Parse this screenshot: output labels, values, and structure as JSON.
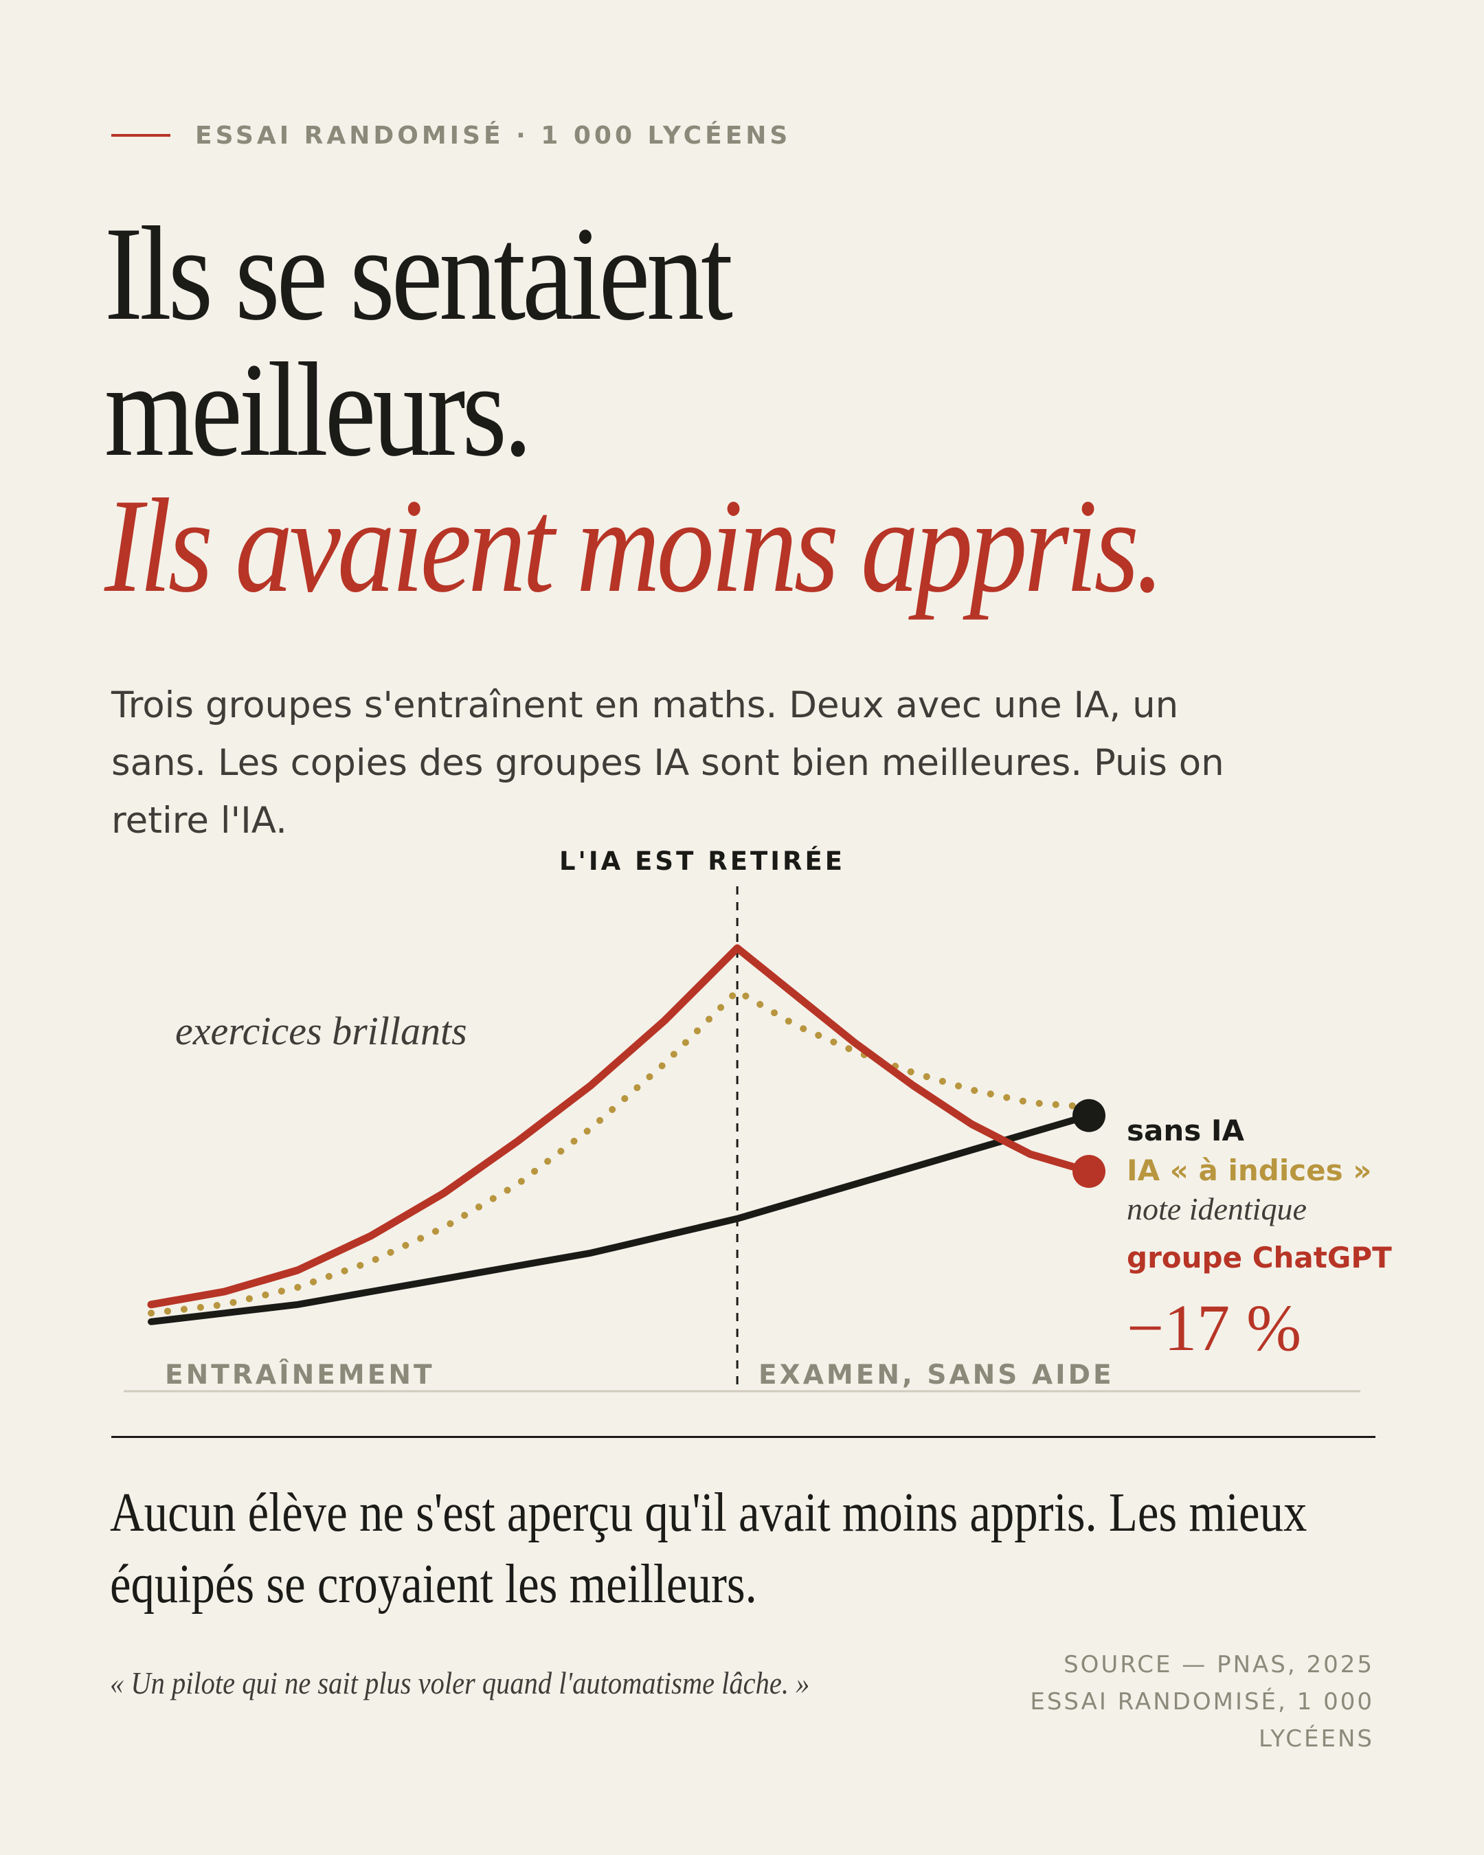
{
  "eyebrow": "ESSAI RANDOMISÉ · 1 000 LYCÉENS",
  "headline": {
    "line1": "Ils se sentaient",
    "line2": "meilleurs.",
    "line3": "Ils avaient moins appris."
  },
  "lede": "Trois groupes s'entraînent en maths. Deux avec une IA, un sans. Les copies des groupes IA sont bien meilleures. Puis on retire l'IA.",
  "colors": {
    "accent": "#b73526",
    "gold": "#b8963f",
    "ink": "#1a1a17",
    "muted": "#8b8a7a",
    "background": "#f4f1e9"
  },
  "chart_data": {
    "type": "line",
    "title": "",
    "xlabel": "",
    "ylabel": "",
    "x": [
      0,
      0.125,
      0.25,
      0.375,
      0.5,
      0.625,
      0.75,
      0.875,
      1.0,
      1.1,
      1.2,
      1.3,
      1.4,
      1.5,
      1.6
    ],
    "xlim": [
      0,
      1.6
    ],
    "ylim": [
      0,
      100
    ],
    "split_x": 1.0,
    "split_label": "L'IA EST RETIRÉE",
    "phase_labels": [
      "ENTRAÎNEMENT",
      "EXAMEN, SANS AIDE"
    ],
    "annotation": "exercices brillants",
    "series": [
      {
        "name": "groupe ChatGPT",
        "style": "solid",
        "color": "#b73526",
        "values": [
          9,
          12,
          17,
          25,
          35,
          47,
          60,
          75,
          92,
          81,
          70,
          60,
          51,
          44,
          40
        ]
      },
      {
        "name": "IA « à indices »",
        "style": "dotted",
        "color": "#b8963f",
        "values": [
          7,
          9,
          13,
          19,
          27,
          37,
          50,
          65,
          82,
          74,
          68,
          63,
          59,
          56,
          55
        ]
      },
      {
        "name": "sans IA",
        "style": "solid",
        "color": "#1a1a17",
        "values": [
          5,
          7,
          9,
          12,
          15,
          18,
          21,
          25,
          29,
          33,
          37,
          41,
          45,
          49,
          53
        ]
      }
    ],
    "legend": {
      "no_ai": "sans IA",
      "hints": "IA « à indices »",
      "same_grade": "note identique",
      "chatgpt": "groupe ChatGPT",
      "delta": "−17 %"
    }
  },
  "conclusion": "Aucun élève ne s'est aperçu qu'il avait moins appris. Les mieux équipés se croyaient les meilleurs.",
  "quote": "« Un pilote qui ne sait plus voler quand l'automatisme lâche. »",
  "source": {
    "line1": "SOURCE — PNAS, 2025",
    "line2": "ESSAI RANDOMISÉ, 1 000",
    "line3": "LYCÉENS"
  }
}
